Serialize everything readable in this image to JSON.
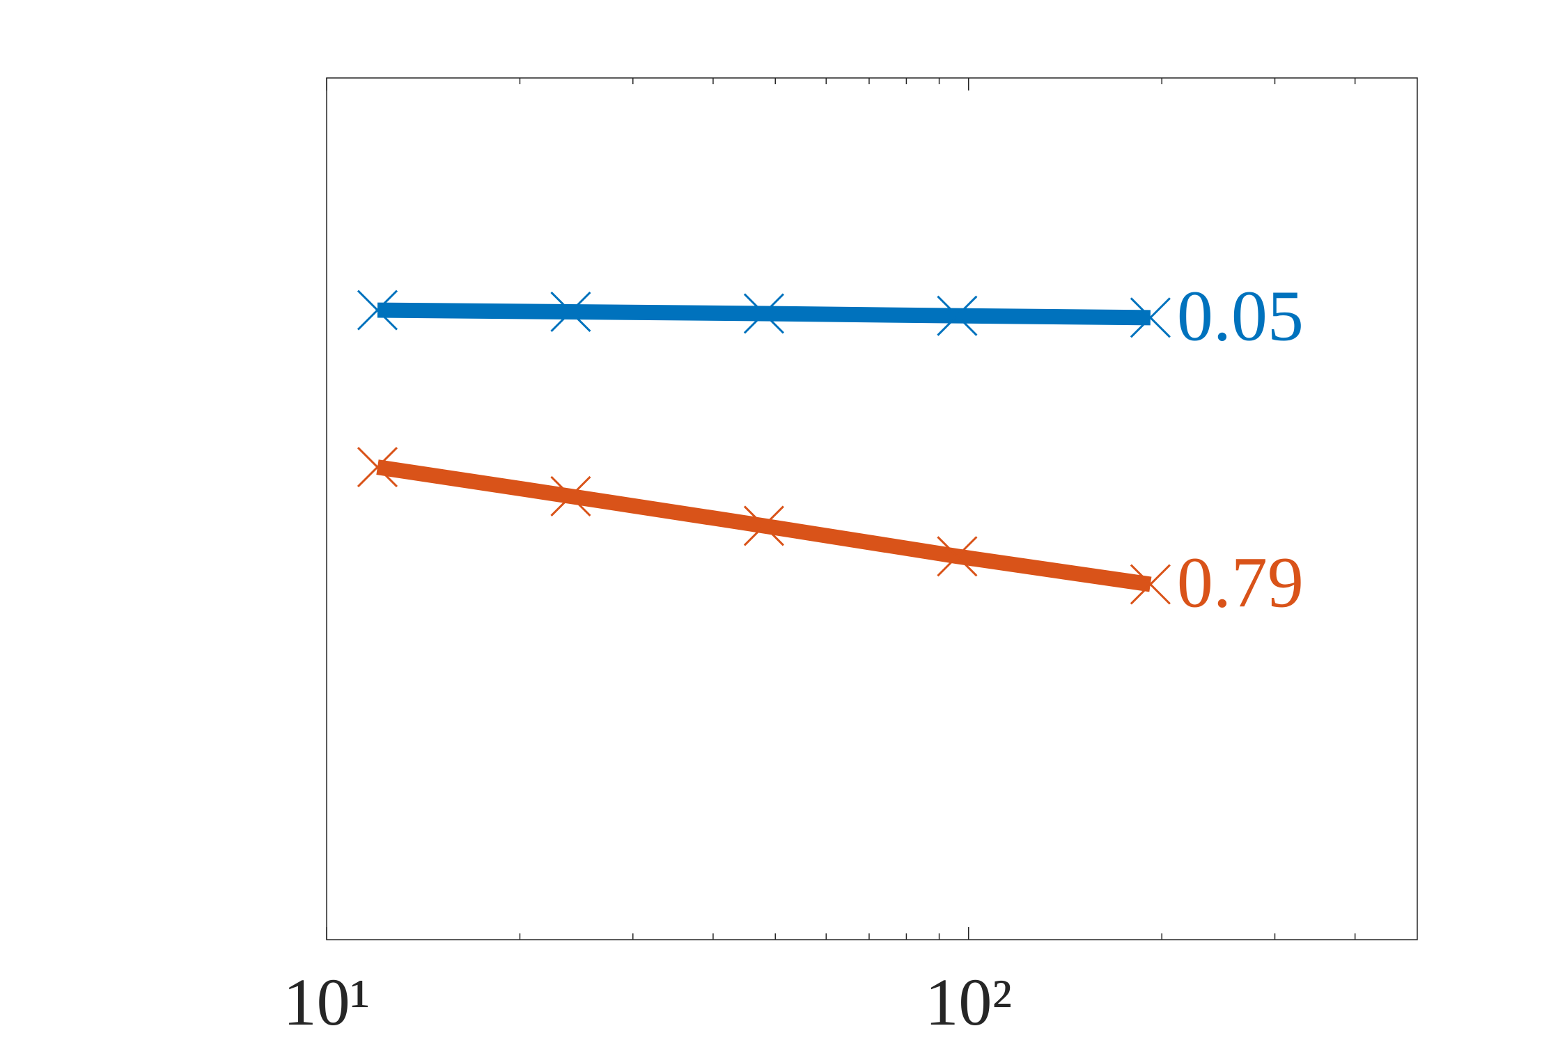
{
  "chart_data": {
    "type": "line",
    "log_x": true,
    "log_y": true,
    "grid": false,
    "x": [
      12,
      24,
      48,
      96,
      192
    ],
    "xlim": [
      10,
      500
    ],
    "xticks": [
      {
        "value": 10,
        "label": "10¹"
      },
      {
        "value": 100,
        "label": "10²"
      }
    ],
    "xminorticks": [
      20,
      30,
      40,
      50,
      60,
      70,
      80,
      90,
      200,
      300,
      400
    ],
    "ylim": [
      1e-06,
      10
    ],
    "series": [
      {
        "name": "0.05",
        "label": "0.05",
        "color": "#0072bd",
        "values": [
          0.13,
          0.126,
          0.122,
          0.117,
          0.113
        ]
      },
      {
        "name": "0.79",
        "label": "0.79",
        "color": "#d95319",
        "values": [
          0.0069,
          0.004,
          0.0023,
          0.0013,
          0.00077
        ]
      }
    ]
  }
}
